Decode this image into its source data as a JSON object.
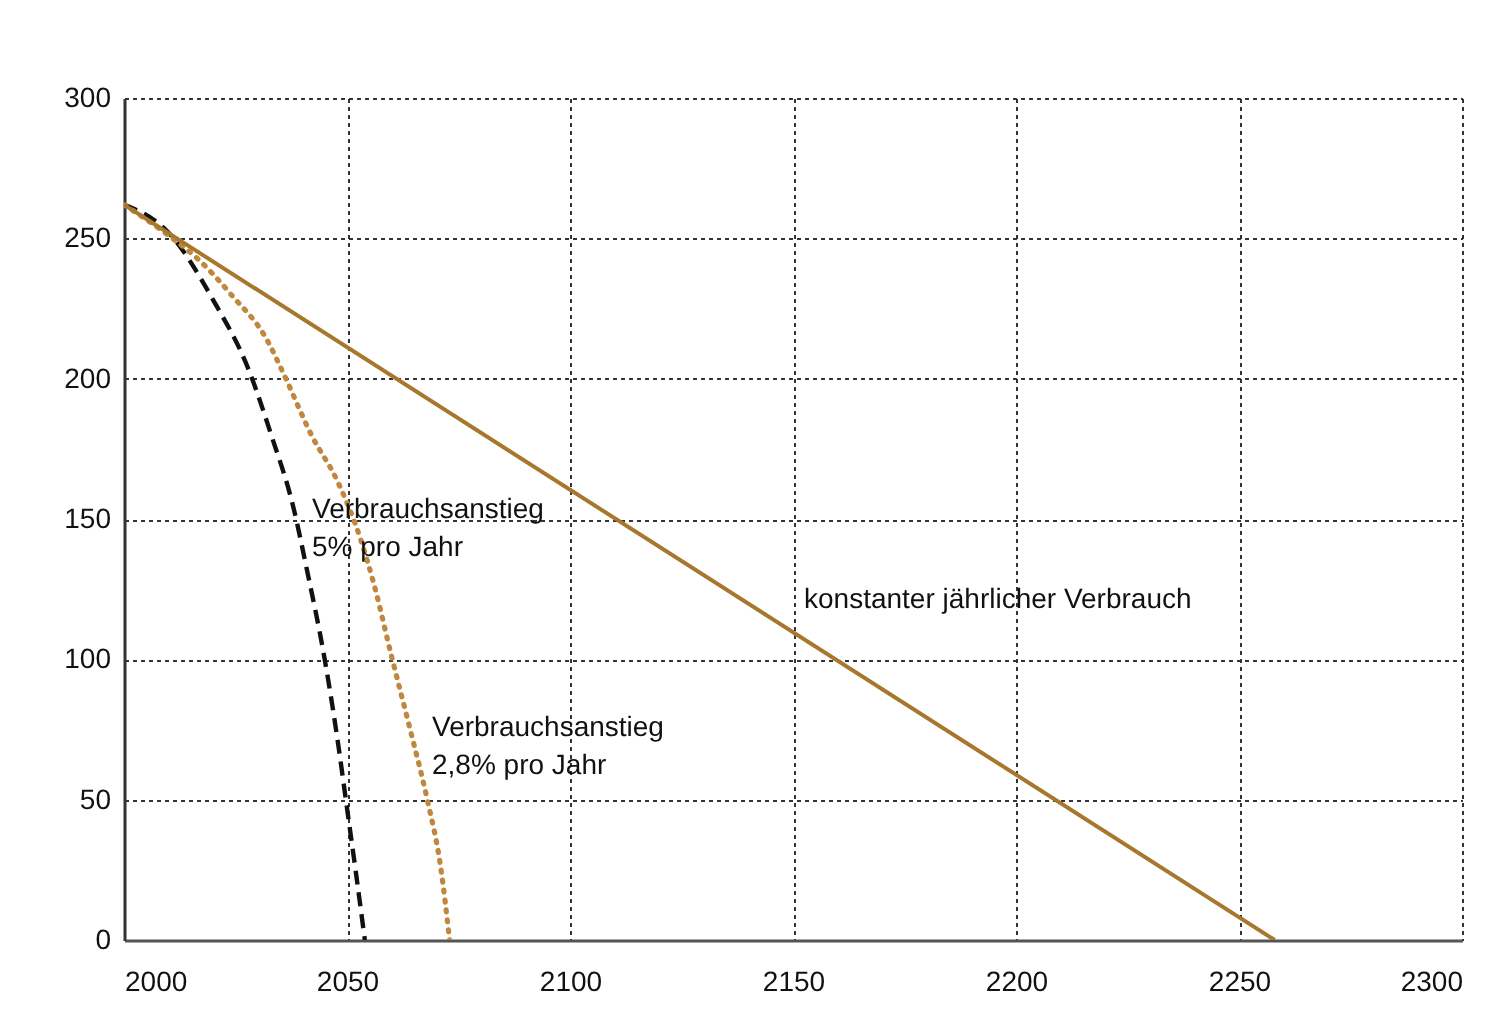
{
  "chart_data": {
    "type": "line",
    "xlim": [
      2000,
      2300
    ],
    "ylim": [
      0,
      300
    ],
    "xticks": [
      2000,
      2050,
      2100,
      2150,
      2200,
      2250,
      2300
    ],
    "yticks": [
      0,
      50,
      100,
      150,
      200,
      250,
      300
    ],
    "grid": true,
    "series": [
      {
        "name": "Verbrauchsanstieg\n5% pro Jahr",
        "color": "#111111",
        "line_style": "dashed",
        "x": [
          2000,
          2010,
          2020,
          2028,
          2033,
          2038,
          2041,
          2045,
          2048,
          2050,
          2052,
          2054
        ],
        "values": [
          262,
          252,
          228,
          203,
          180,
          154,
          132,
          100,
          70,
          47,
          24,
          0
        ]
      },
      {
        "name": "Verbrauchsanstieg\n2,8% pro Jahr",
        "color": "#c0883e",
        "line_style": "dotted",
        "x": [
          2000,
          2010,
          2017,
          2024,
          2032,
          2036,
          2042,
          2048,
          2053,
          2056,
          2060,
          2064,
          2068,
          2071,
          2073
        ],
        "values": [
          262,
          251,
          242,
          230,
          214,
          201,
          180,
          163,
          143,
          127,
          101,
          76,
          50,
          26,
          0
        ]
      },
      {
        "name": "konstanter jährlicher Verbrauch",
        "color": "#a8772e",
        "line_style": "solid",
        "x": [
          2000,
          2258
        ],
        "values": [
          262,
          0
        ]
      }
    ]
  }
}
